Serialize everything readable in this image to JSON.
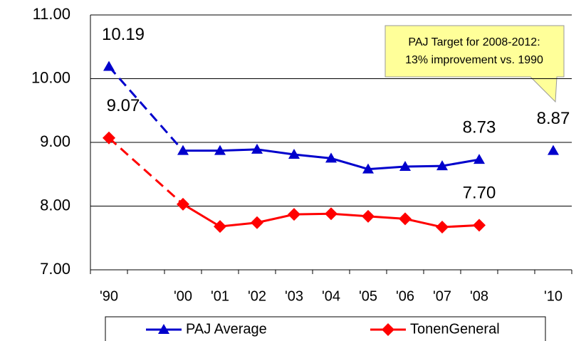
{
  "chart_data": {
    "type": "line",
    "categories": [
      "'90",
      null,
      "'00",
      "'01",
      "'02",
      "'03",
      "'04",
      "'05",
      "'06",
      "'07",
      "'08",
      null,
      "'10"
    ],
    "series": [
      {
        "name": "PAJ Average",
        "color": "#0000cc",
        "marker": "triangle",
        "values": [
          10.19,
          null,
          8.87,
          8.87,
          8.89,
          8.81,
          8.75,
          8.58,
          8.62,
          8.63,
          8.73,
          null,
          8.87
        ],
        "value_labels": [
          "10.19",
          null,
          null,
          null,
          null,
          null,
          null,
          null,
          null,
          null,
          "8.73",
          null,
          "8.87"
        ]
      },
      {
        "name": "TonenGeneral",
        "color": "#ff0000",
        "marker": "diamond",
        "values": [
          9.07,
          null,
          8.03,
          7.68,
          7.74,
          7.87,
          7.88,
          7.84,
          7.8,
          7.67,
          7.7,
          null,
          null
        ],
        "value_labels": [
          "9.07",
          null,
          null,
          null,
          null,
          null,
          null,
          null,
          null,
          null,
          "7.70",
          null,
          null
        ]
      }
    ],
    "ylim": [
      7,
      11
    ],
    "yticks": [
      {
        "value": 7,
        "label": "7.00"
      },
      {
        "value": 8,
        "label": "8.00"
      },
      {
        "value": 9,
        "label": "9.00"
      },
      {
        "value": 10,
        "label": "10.00"
      },
      {
        "value": 11,
        "label": "11.00"
      }
    ],
    "grid": true,
    "legend": "bottom",
    "annotation": [
      "PAJ Target for 2008-2012:",
      "13% improvement vs. 1990"
    ]
  }
}
